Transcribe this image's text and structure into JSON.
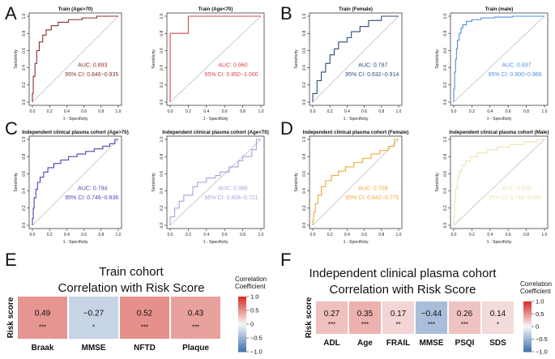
{
  "figure": {
    "panel_labels": [
      "A",
      "B",
      "C",
      "D",
      "E",
      "F"
    ]
  },
  "common": {
    "xlabel": "1 - Specificity",
    "ylabel": "Sensitivity",
    "ticks": [
      "0.0",
      "0.2",
      "0.4",
      "0.6",
      "0.8",
      "1.0"
    ],
    "tick_values": [
      0,
      0.2,
      0.4,
      0.6,
      0.8,
      1.0
    ]
  },
  "chart_data": [
    {
      "type": "line",
      "id": "roc-train-age-gt70",
      "title": "Train (Age>70)",
      "auc": "AUC: 0.893",
      "ci": "95% CI: 0.846−0.935",
      "color": "#8b2f2f",
      "xlim": [
        0,
        1
      ],
      "ylim": [
        0,
        1
      ],
      "x": [
        0,
        0,
        0.01,
        0.01,
        0.03,
        0.03,
        0.05,
        0.05,
        0.08,
        0.08,
        0.12,
        0.12,
        0.16,
        0.16,
        0.22,
        0.22,
        0.3,
        0.3,
        0.42,
        0.42,
        0.58,
        0.58,
        0.75,
        0.75,
        1
      ],
      "y": [
        0,
        0.1,
        0.1,
        0.3,
        0.3,
        0.45,
        0.45,
        0.6,
        0.6,
        0.7,
        0.7,
        0.78,
        0.78,
        0.84,
        0.84,
        0.89,
        0.89,
        0.93,
        0.93,
        0.96,
        0.96,
        0.98,
        0.98,
        1,
        1
      ]
    },
    {
      "type": "line",
      "id": "roc-train-age-lt70",
      "title": "Train (Age<70)",
      "auc": "AUC: 0.960",
      "ci": "95% CI: 0.850−1.000",
      "color": "#d9464f",
      "xlim": [
        0,
        1
      ],
      "ylim": [
        0,
        1
      ],
      "x": [
        0,
        0,
        0.2,
        0.2,
        1
      ],
      "y": [
        0,
        0.8,
        0.8,
        1,
        1
      ]
    },
    {
      "type": "line",
      "id": "roc-train-female",
      "title": "Train (Female)",
      "auc": "AUC: 0.787",
      "ci": "95% CI: 0.632−0.914",
      "color": "#2f4a7c",
      "xlim": [
        0,
        1
      ],
      "ylim": [
        0,
        1
      ],
      "x": [
        0,
        0,
        0.05,
        0.05,
        0.1,
        0.1,
        0.15,
        0.15,
        0.2,
        0.2,
        0.25,
        0.25,
        0.3,
        0.3,
        0.4,
        0.4,
        0.45,
        0.45,
        0.55,
        0.55,
        0.65,
        0.65,
        0.8,
        0.8,
        1
      ],
      "y": [
        0,
        0.1,
        0.1,
        0.25,
        0.25,
        0.35,
        0.35,
        0.45,
        0.45,
        0.55,
        0.55,
        0.62,
        0.62,
        0.7,
        0.7,
        0.75,
        0.75,
        0.82,
        0.82,
        0.88,
        0.88,
        0.95,
        0.95,
        1,
        1
      ]
    },
    {
      "type": "line",
      "id": "roc-train-male",
      "title": "Train (male)",
      "auc": "AUC: 0.937",
      "ci": "95% CI: 0.900−0.966",
      "color": "#4a8fe0",
      "xlim": [
        0,
        1
      ],
      "ylim": [
        0,
        1
      ],
      "x": [
        0,
        0,
        0.01,
        0.01,
        0.02,
        0.02,
        0.03,
        0.03,
        0.04,
        0.04,
        0.06,
        0.06,
        0.08,
        0.08,
        0.1,
        0.1,
        0.14,
        0.14,
        0.2,
        0.2,
        0.3,
        0.3,
        0.45,
        0.45,
        0.65,
        0.65,
        1
      ],
      "y": [
        0,
        0.15,
        0.15,
        0.35,
        0.35,
        0.5,
        0.5,
        0.62,
        0.62,
        0.72,
        0.72,
        0.8,
        0.8,
        0.86,
        0.86,
        0.9,
        0.9,
        0.94,
        0.94,
        0.96,
        0.96,
        0.98,
        0.98,
        0.99,
        0.99,
        1,
        1
      ]
    },
    {
      "type": "line",
      "id": "roc-indep-age-gt70",
      "title": "Independent  clinical plasma cohort (Age>70)",
      "auc": "AUC: 0.794",
      "ci": "95% CI: 0.746−0.836",
      "color": "#5a3fb5",
      "xlim": [
        0,
        1
      ],
      "ylim": [
        0,
        1
      ],
      "x": [
        0,
        0,
        0.01,
        0.01,
        0.02,
        0.02,
        0.04,
        0.04,
        0.06,
        0.06,
        0.09,
        0.09,
        0.13,
        0.13,
        0.18,
        0.18,
        0.25,
        0.25,
        0.33,
        0.33,
        0.42,
        0.42,
        0.52,
        0.52,
        0.62,
        0.62,
        0.72,
        0.72,
        0.82,
        0.82,
        0.9,
        0.9,
        0.96,
        0.96,
        1
      ],
      "y": [
        0,
        0.08,
        0.08,
        0.2,
        0.2,
        0.32,
        0.32,
        0.42,
        0.42,
        0.5,
        0.5,
        0.56,
        0.56,
        0.62,
        0.62,
        0.67,
        0.67,
        0.72,
        0.72,
        0.76,
        0.76,
        0.8,
        0.8,
        0.83,
        0.83,
        0.86,
        0.86,
        0.89,
        0.89,
        0.92,
        0.92,
        0.95,
        0.95,
        1,
        1
      ]
    },
    {
      "type": "line",
      "id": "roc-indep-age-lt70",
      "title": "Independent  clinical plasma cohort (Age<70)",
      "auc": "AUC: 0.566",
      "ci": "95% CI: 0.408−0.721",
      "color": "#a7a3dc",
      "xlim": [
        0,
        1
      ],
      "ylim": [
        0,
        1
      ],
      "x": [
        0,
        0,
        0.05,
        0.05,
        0.1,
        0.1,
        0.15,
        0.15,
        0.25,
        0.25,
        0.3,
        0.3,
        0.4,
        0.4,
        0.5,
        0.5,
        0.55,
        0.55,
        0.65,
        0.65,
        0.75,
        0.75,
        0.8,
        0.8,
        0.9,
        0.9,
        0.95,
        0.95,
        1
      ],
      "y": [
        0,
        0.1,
        0.1,
        0.2,
        0.2,
        0.28,
        0.28,
        0.35,
        0.35,
        0.45,
        0.45,
        0.5,
        0.5,
        0.55,
        0.55,
        0.58,
        0.58,
        0.62,
        0.62,
        0.68,
        0.68,
        0.75,
        0.75,
        0.8,
        0.8,
        0.88,
        0.88,
        1,
        1
      ]
    },
    {
      "type": "line",
      "id": "roc-indep-female",
      "title": "Independent  clinical plasma cohort (Female)",
      "auc": "AUC: 0.708",
      "ci": "95% CI: 0.642−0.775",
      "color": "#f0aa3a",
      "xlim": [
        0,
        1
      ],
      "ylim": [
        0,
        1
      ],
      "x": [
        0,
        0,
        0.01,
        0.01,
        0.03,
        0.03,
        0.06,
        0.06,
        0.1,
        0.1,
        0.15,
        0.15,
        0.22,
        0.22,
        0.3,
        0.3,
        0.38,
        0.38,
        0.48,
        0.48,
        0.58,
        0.58,
        0.68,
        0.68,
        0.78,
        0.78,
        0.88,
        0.88,
        0.95,
        0.95,
        1
      ],
      "y": [
        0,
        0.05,
        0.05,
        0.15,
        0.15,
        0.25,
        0.25,
        0.35,
        0.35,
        0.45,
        0.45,
        0.52,
        0.52,
        0.58,
        0.58,
        0.63,
        0.63,
        0.68,
        0.68,
        0.73,
        0.73,
        0.78,
        0.78,
        0.83,
        0.83,
        0.87,
        0.87,
        0.92,
        0.92,
        1,
        1
      ]
    },
    {
      "type": "line",
      "id": "roc-indep-male",
      "title": "Independent  clinical plasma cohort (Male)",
      "auc": "AUC: 0.838",
      "ci": "95% CI: 0.783−0.890",
      "color": "#ede1b5",
      "xlim": [
        0,
        1
      ],
      "ylim": [
        0,
        1
      ],
      "x": [
        0,
        0,
        0.01,
        0.01,
        0.02,
        0.02,
        0.04,
        0.04,
        0.06,
        0.06,
        0.09,
        0.09,
        0.13,
        0.13,
        0.18,
        0.18,
        0.26,
        0.26,
        0.36,
        0.36,
        0.48,
        0.48,
        0.62,
        0.62,
        0.78,
        0.78,
        0.92,
        0.92,
        1
      ],
      "y": [
        0,
        0.1,
        0.1,
        0.28,
        0.28,
        0.42,
        0.42,
        0.55,
        0.55,
        0.63,
        0.63,
        0.7,
        0.7,
        0.75,
        0.75,
        0.8,
        0.8,
        0.84,
        0.84,
        0.88,
        0.88,
        0.91,
        0.91,
        0.94,
        0.94,
        0.97,
        0.97,
        1,
        1
      ]
    },
    {
      "type": "heatmap",
      "id": "heatmap-train",
      "title_line1": "Train cohort",
      "title_line2": "Correlation with Risk Score",
      "row_label": "Risk score",
      "categories": [
        "Braak",
        "MMSE",
        "NFTD",
        "Plaque"
      ],
      "values": [
        0.49,
        -0.27,
        0.52,
        0.43
      ],
      "value_labels": [
        "0.49",
        "−0.27",
        "0.52",
        "0.43"
      ],
      "sig": [
        "***",
        "*",
        "***",
        "***"
      ],
      "legend_title": [
        "Correlation",
        "Coefficient"
      ],
      "legend_ticks": [
        "1.0",
        "0.5",
        "0",
        "−0.5",
        "−1.0"
      ],
      "legend_tick_values": [
        1,
        0.5,
        0,
        -0.5,
        -1
      ]
    },
    {
      "type": "heatmap",
      "id": "heatmap-indep",
      "title_line1": "Independent  clinical plasma cohort",
      "title_line2": "Correlation with Risk Score",
      "row_label": "Risk score",
      "categories": [
        "ADL",
        "Age",
        "FRAIL",
        "MMSE",
        "PSQI",
        "SDS"
      ],
      "values": [
        0.27,
        0.35,
        0.17,
        -0.44,
        0.26,
        0.14
      ],
      "value_labels": [
        "0.27",
        "0.35",
        "0.17",
        "−0.44",
        "0.26",
        "0.14"
      ],
      "sig": [
        "***",
        "***",
        "**",
        "***",
        "***",
        "*"
      ],
      "legend_title": [
        "Correlation",
        "Coefficient"
      ],
      "legend_ticks": [
        "1.0",
        "0.5",
        "0",
        "−0.5",
        "−1.0"
      ],
      "legend_tick_values": [
        1,
        0.5,
        0,
        -0.5,
        -1
      ]
    }
  ]
}
